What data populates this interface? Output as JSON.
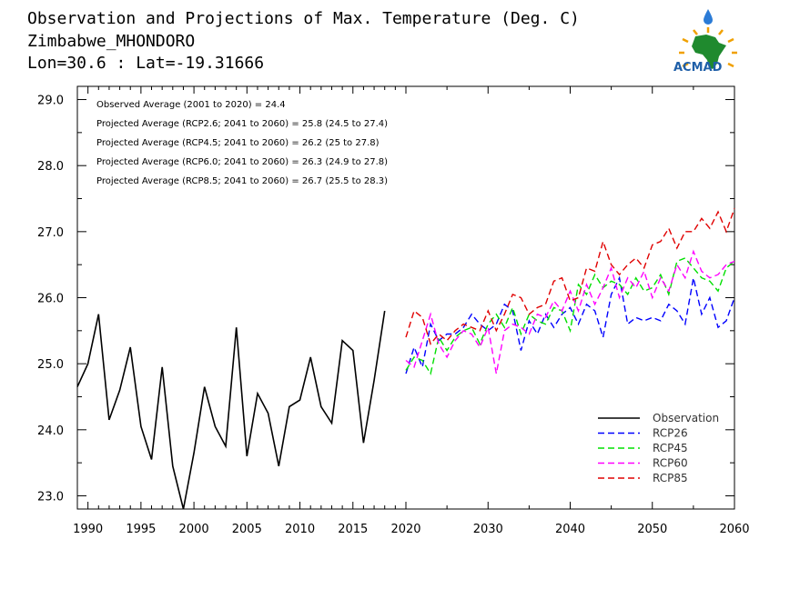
{
  "header": {
    "title": "Observation and Projections of Max. Temperature (Deg. C)",
    "station": "Zimbabwe_MHONDORO",
    "coords": "Lon=30.6 : Lat=-19.31666"
  },
  "logo": {
    "text": "ACMAD"
  },
  "annotations": [
    "Observed Average (2001 to 2020) = 24.4",
    "Projected Average (RCP2.6; 2041 to 2060) = 25.8 (24.5 to 27.4)",
    "Projected Average (RCP4.5; 2041 to 2060) = 26.2 (25 to 27.8)",
    "Projected Average (RCP6.0; 2041 to 2060) = 26.3 (24.9 to 27.8)",
    "Projected Average (RCP8.5; 2041 to 2060) = 26.7 (25.5 to 28.3)"
  ],
  "chart_data": {
    "type": "line",
    "xlim": [
      1989,
      2060
    ],
    "ylim": [
      22.8,
      29.2
    ],
    "x_ticks": [
      1990,
      1995,
      2000,
      2005,
      2010,
      2015,
      2020,
      2030,
      2040,
      2050,
      2060
    ],
    "y_ticks": [
      "23.0",
      "24.0",
      "25.0",
      "26.0",
      "27.0",
      "28.0",
      "29.0"
    ],
    "legend_position": "bottom-right",
    "series": [
      {
        "name": "Observation",
        "color": "#000000",
        "dash": "solid",
        "x": [
          1989,
          1990,
          1991,
          1992,
          1993,
          1994,
          1995,
          1996,
          1997,
          1998,
          1999,
          2000,
          2001,
          2002,
          2003,
          2004,
          2005,
          2006,
          2007,
          2008,
          2009,
          2010,
          2011,
          2012,
          2013,
          2014,
          2015,
          2016,
          2017,
          2018,
          2019,
          2020
        ],
        "values": [
          24.65,
          25.0,
          25.75,
          24.15,
          24.6,
          25.25,
          24.05,
          23.55,
          24.95,
          23.45,
          22.8,
          23.65,
          24.65,
          24.05,
          23.75,
          25.55,
          23.6,
          24.55,
          24.25,
          23.45,
          24.35,
          24.45,
          25.1,
          24.35,
          24.1,
          25.35,
          25.2,
          23.8,
          24.75,
          25.8,
          null,
          null
        ]
      },
      {
        "name": "RCP26",
        "color": "#0000ff",
        "dash": "dashed",
        "x": [
          2020,
          2021,
          2022,
          2023,
          2024,
          2025,
          2026,
          2027,
          2028,
          2029,
          2030,
          2031,
          2032,
          2033,
          2034,
          2035,
          2036,
          2037,
          2038,
          2039,
          2040,
          2041,
          2042,
          2043,
          2044,
          2045,
          2046,
          2047,
          2048,
          2049,
          2050,
          2051,
          2052,
          2053,
          2054,
          2055,
          2056,
          2057,
          2058,
          2059,
          2060
        ],
        "values": [
          24.85,
          25.25,
          24.95,
          25.6,
          25.35,
          25.45,
          25.45,
          25.55,
          25.75,
          25.6,
          25.5,
          25.6,
          25.9,
          25.8,
          25.2,
          25.65,
          25.45,
          25.75,
          25.55,
          25.75,
          25.85,
          25.6,
          25.9,
          25.8,
          25.4,
          26.05,
          26.3,
          25.6,
          25.7,
          25.65,
          25.7,
          25.65,
          25.9,
          25.8,
          25.6,
          26.3,
          25.75,
          26.0,
          25.55,
          25.65,
          26.0
        ]
      },
      {
        "name": "RCP45",
        "color": "#00e000",
        "dash": "dashed",
        "x": [
          2020,
          2021,
          2022,
          2023,
          2024,
          2025,
          2026,
          2027,
          2028,
          2029,
          2030,
          2031,
          2032,
          2033,
          2034,
          2035,
          2036,
          2037,
          2038,
          2039,
          2040,
          2041,
          2042,
          2043,
          2044,
          2045,
          2046,
          2047,
          2048,
          2049,
          2050,
          2051,
          2052,
          2053,
          2054,
          2055,
          2056,
          2057,
          2058,
          2059,
          2060
        ],
        "values": [
          24.9,
          25.1,
          25.05,
          24.85,
          25.4,
          25.2,
          25.4,
          25.5,
          25.55,
          25.3,
          25.6,
          25.75,
          25.55,
          25.85,
          25.45,
          25.75,
          25.65,
          25.6,
          25.85,
          25.8,
          25.5,
          26.2,
          26.05,
          26.35,
          26.15,
          26.25,
          26.2,
          26.05,
          26.3,
          26.1,
          26.15,
          26.35,
          26.05,
          26.55,
          26.6,
          26.45,
          26.3,
          26.25,
          26.1,
          26.45,
          26.55
        ]
      },
      {
        "name": "RCP60",
        "color": "#ff00ff",
        "dash": "dashed",
        "x": [
          2020,
          2021,
          2022,
          2023,
          2024,
          2025,
          2026,
          2027,
          2028,
          2029,
          2030,
          2031,
          2032,
          2033,
          2034,
          2035,
          2036,
          2037,
          2038,
          2039,
          2040,
          2041,
          2042,
          2043,
          2044,
          2045,
          2046,
          2047,
          2048,
          2049,
          2050,
          2051,
          2052,
          2053,
          2054,
          2055,
          2056,
          2057,
          2058,
          2059,
          2060
        ],
        "values": [
          25.05,
          24.95,
          25.35,
          25.75,
          25.3,
          25.1,
          25.35,
          25.5,
          25.45,
          25.25,
          25.55,
          24.85,
          25.5,
          25.6,
          25.55,
          25.45,
          25.75,
          25.7,
          25.95,
          25.8,
          26.1,
          25.8,
          26.2,
          25.9,
          26.15,
          26.45,
          26.0,
          26.3,
          26.15,
          26.4,
          26.0,
          26.3,
          26.1,
          26.5,
          26.3,
          26.7,
          26.4,
          26.3,
          26.35,
          26.5,
          26.55
        ]
      },
      {
        "name": "RCP85",
        "color": "#e00000",
        "dash": "dashed",
        "x": [
          2020,
          2021,
          2022,
          2023,
          2024,
          2025,
          2026,
          2027,
          2028,
          2029,
          2030,
          2031,
          2032,
          2033,
          2034,
          2035,
          2036,
          2037,
          2038,
          2039,
          2040,
          2041,
          2042,
          2043,
          2044,
          2045,
          2046,
          2047,
          2048,
          2049,
          2050,
          2051,
          2052,
          2053,
          2054,
          2055,
          2056,
          2057,
          2058,
          2059,
          2060
        ],
        "values": [
          25.4,
          25.8,
          25.7,
          25.3,
          25.45,
          25.35,
          25.5,
          25.6,
          25.55,
          25.5,
          25.8,
          25.5,
          25.75,
          26.05,
          26.0,
          25.75,
          25.85,
          25.9,
          26.25,
          26.3,
          25.95,
          26.0,
          26.45,
          26.4,
          26.85,
          26.5,
          26.35,
          26.5,
          26.6,
          26.45,
          26.8,
          26.85,
          27.05,
          26.75,
          27.0,
          27.0,
          27.2,
          27.05,
          27.3,
          27.0,
          27.35
        ]
      }
    ]
  }
}
